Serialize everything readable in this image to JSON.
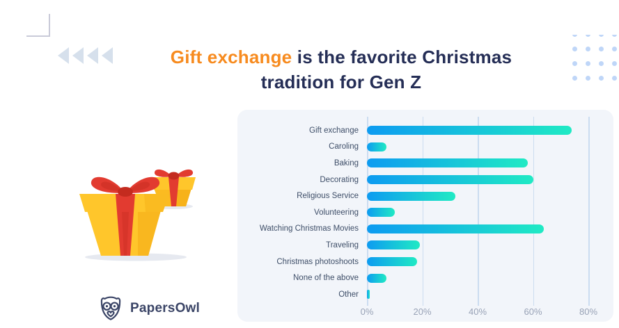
{
  "header": {
    "highlight": "Gift exchange",
    "rest": " is the favorite Christmas",
    "line2": "tradition for Gen Z"
  },
  "brand": {
    "name": "PapersOwl"
  },
  "chart_data": {
    "type": "bar",
    "orientation": "horizontal",
    "title": "Gift exchange is the favorite Christmas tradition for Gen Z",
    "categories": [
      "Gift exchange",
      "Caroling",
      "Baking",
      "Decorating",
      "Religious Service",
      "Volunteering",
      "Watching Christmas Movies",
      "Traveling",
      "Christmas photoshoots",
      "None of the above",
      "Other"
    ],
    "values": [
      74,
      7,
      58,
      60,
      32,
      10,
      64,
      19,
      18,
      7,
      1
    ],
    "unit": "%",
    "x_ticks": [
      0,
      20,
      40,
      60,
      80
    ],
    "x_tick_labels": [
      "0%",
      "20%",
      "40%",
      "60%",
      "80%"
    ],
    "xlim": [
      0,
      85
    ],
    "grid": true,
    "legend": "none",
    "bar_gradient": [
      "#0D9BF1",
      "#20EAC4"
    ]
  },
  "decorations": {
    "chevron_count": 4,
    "dots_rows": 4,
    "dots_cols": 4
  },
  "colors": {
    "title_navy": "#252E56",
    "title_orange": "#F78B1F",
    "panel_bg": "#F2F5FA",
    "gridline": "#CBDCF0",
    "axis_label": "#98A2B6",
    "category_label": "#3E4E68",
    "logo_navy": "#3A4466"
  }
}
